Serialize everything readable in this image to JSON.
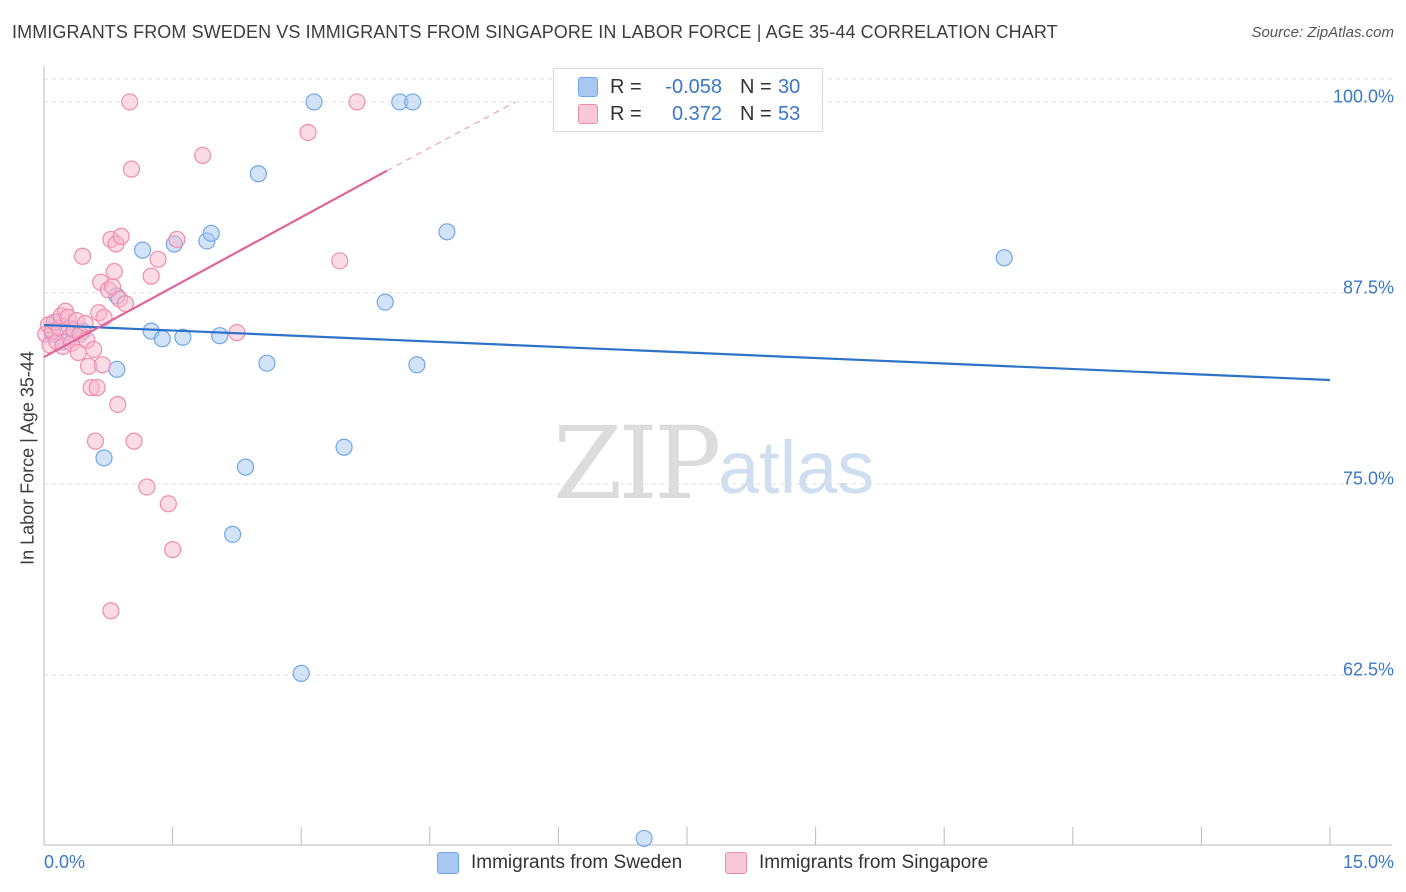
{
  "header": {
    "title": "IMMIGRANTS FROM SWEDEN VS IMMIGRANTS FROM SINGAPORE IN LABOR FORCE | AGE 35-44 CORRELATION CHART",
    "source": "Source: ZipAtlas.com"
  },
  "watermark": {
    "zip": "ZIP",
    "atlas": "atlas"
  },
  "stats": [
    {
      "r_label": "R =",
      "r_value": "-0.058",
      "n_label": "N =",
      "n_value": "30",
      "color": "#6fa8e8"
    },
    {
      "r_label": "R =",
      "r_value": "0.372",
      "n_label": "N =",
      "n_value": "53",
      "color": "#f08cb0"
    }
  ],
  "legend": {
    "sweden": "Immigrants from Sweden",
    "singapore": "Immigrants from Singapore"
  },
  "colors": {
    "sweden_fill": "#a8c8f0",
    "sweden_stroke": "#6fa8e8",
    "sweden_line": "#2f72c9",
    "singapore_fill": "#f8b8cc",
    "singapore_stroke": "#f08cb0",
    "singapore_line": "#e0649a",
    "tick_text": "#3a78c9",
    "grid": "#e0e0e0"
  },
  "chart_data": {
    "type": "scatter",
    "title": "IMMIGRANTS FROM SWEDEN VS IMMIGRANTS FROM SINGAPORE IN LABOR FORCE | AGE 35-44 CORRELATION CHART",
    "xlabel": "",
    "ylabel": "In Labor Force | Age 35-44",
    "xlim": [
      0,
      15
    ],
    "ylim": [
      51.5,
      101.5
    ],
    "x_tick_labels": [
      "0.0%",
      "15.0%"
    ],
    "y_ticks": [
      62.5,
      75.0,
      87.5,
      100.0
    ],
    "y_tick_labels": [
      "62.5%",
      "75.0%",
      "87.5%",
      "100.0%"
    ],
    "legend_position": "bottom-center",
    "series": [
      {
        "name": "Immigrants from Sweden",
        "points": [
          [
            0.15,
            85.6
          ],
          [
            0.3,
            85.2
          ],
          [
            0.45,
            85.0
          ],
          [
            0.7,
            76.7
          ],
          [
            0.85,
            87.3
          ],
          [
            0.85,
            82.5
          ],
          [
            1.15,
            90.3
          ],
          [
            1.25,
            85.0
          ],
          [
            1.38,
            84.5
          ],
          [
            1.52,
            90.7
          ],
          [
            1.62,
            84.6
          ],
          [
            1.9,
            90.9
          ],
          [
            1.95,
            91.4
          ],
          [
            2.05,
            84.7
          ],
          [
            2.2,
            71.7
          ],
          [
            2.35,
            76.1
          ],
          [
            2.5,
            95.3
          ],
          [
            2.6,
            82.9
          ],
          [
            3.0,
            62.6
          ],
          [
            3.15,
            100.0
          ],
          [
            3.5,
            77.4
          ],
          [
            3.98,
            86.9
          ],
          [
            4.15,
            100.0
          ],
          [
            4.3,
            100.0
          ],
          [
            4.35,
            82.8
          ],
          [
            4.7,
            91.5
          ],
          [
            7.0,
            51.8
          ],
          [
            11.2,
            89.8
          ],
          [
            0.1,
            84.8
          ],
          [
            0.22,
            84.3
          ]
        ],
        "trend": {
          "x": [
            0.0,
            15.0
          ],
          "y": [
            85.4,
            81.8
          ]
        }
      },
      {
        "name": "Immigrants from Singapore",
        "points": [
          [
            0.02,
            84.8
          ],
          [
            0.05,
            85.4
          ],
          [
            0.07,
            84.1
          ],
          [
            0.1,
            85.0
          ],
          [
            0.12,
            85.6
          ],
          [
            0.15,
            84.3
          ],
          [
            0.18,
            85.2
          ],
          [
            0.2,
            86.0
          ],
          [
            0.22,
            84.0
          ],
          [
            0.25,
            86.3
          ],
          [
            0.28,
            85.9
          ],
          [
            0.3,
            84.6
          ],
          [
            0.32,
            84.2
          ],
          [
            0.35,
            85.1
          ],
          [
            0.38,
            85.7
          ],
          [
            0.4,
            83.6
          ],
          [
            0.42,
            84.8
          ],
          [
            0.45,
            89.9
          ],
          [
            0.48,
            85.5
          ],
          [
            0.5,
            84.4
          ],
          [
            0.52,
            82.7
          ],
          [
            0.55,
            81.3
          ],
          [
            0.58,
            83.8
          ],
          [
            0.6,
            77.8
          ],
          [
            0.62,
            81.3
          ],
          [
            0.64,
            86.2
          ],
          [
            0.66,
            88.2
          ],
          [
            0.68,
            82.8
          ],
          [
            0.7,
            85.9
          ],
          [
            0.75,
            87.7
          ],
          [
            0.78,
            91.0
          ],
          [
            0.8,
            87.9
          ],
          [
            0.82,
            88.9
          ],
          [
            0.84,
            90.7
          ],
          [
            0.86,
            80.2
          ],
          [
            0.88,
            87.1
          ],
          [
            0.9,
            91.2
          ],
          [
            0.95,
            86.8
          ],
          [
            1.0,
            100.0
          ],
          [
            1.02,
            95.6
          ],
          [
            1.05,
            77.8
          ],
          [
            1.2,
            74.8
          ],
          [
            1.25,
            88.6
          ],
          [
            1.33,
            89.7
          ],
          [
            1.45,
            73.7
          ],
          [
            1.5,
            70.7
          ],
          [
            1.55,
            91.0
          ],
          [
            1.85,
            96.5
          ],
          [
            2.25,
            84.9
          ],
          [
            3.08,
            98.0
          ],
          [
            3.45,
            89.6
          ],
          [
            3.65,
            100.0
          ],
          [
            0.78,
            66.7
          ]
        ],
        "trend": {
          "x": [
            0.0,
            4.0
          ],
          "y": [
            83.3,
            95.5
          ]
        },
        "trend_dashed": {
          "x": [
            4.0,
            5.5
          ],
          "y": [
            95.5,
            100.0
          ]
        }
      }
    ]
  }
}
